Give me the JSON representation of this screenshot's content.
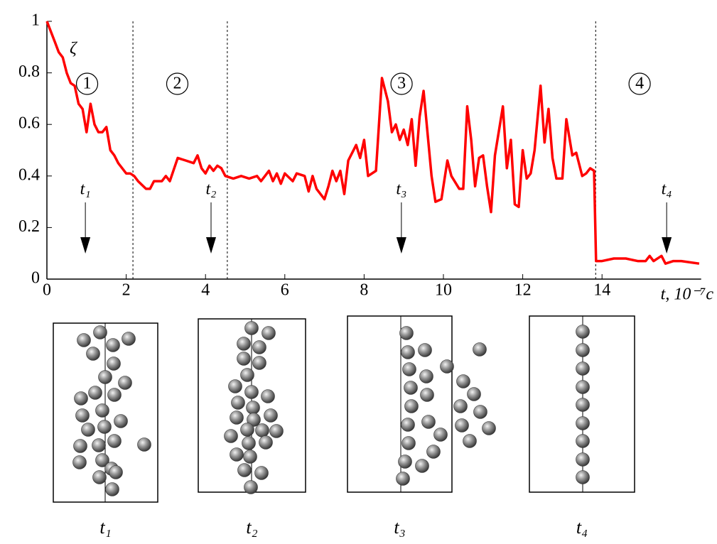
{
  "chart_data": {
    "type": "line",
    "ylabel": "ζ",
    "xlabel": "t, 10⁻⁷с",
    "x": [
      0,
      0.1,
      0.2,
      0.3,
      0.4,
      0.5,
      0.6,
      0.7,
      0.8,
      0.9,
      1.0,
      1.1,
      1.2,
      1.3,
      1.4,
      1.5,
      1.6,
      1.7,
      1.8,
      1.9,
      2.0,
      2.1,
      2.2,
      2.3,
      2.5,
      2.6,
      2.7,
      2.9,
      3.0,
      3.1,
      3.3,
      3.5,
      3.7,
      3.8,
      3.9,
      4.0,
      4.1,
      4.2,
      4.3,
      4.4,
      4.5,
      4.7,
      4.9,
      5.1,
      5.3,
      5.4,
      5.5,
      5.6,
      5.7,
      5.8,
      5.9,
      6.0,
      6.2,
      6.3,
      6.5,
      6.6,
      6.7,
      6.8,
      7.0,
      7.1,
      7.2,
      7.3,
      7.4,
      7.5,
      7.6,
      7.8,
      7.9,
      8.0,
      8.1,
      8.3,
      8.45,
      8.6,
      8.7,
      8.8,
      8.9,
      9.0,
      9.1,
      9.2,
      9.3,
      9.4,
      9.5,
      9.7,
      9.8,
      9.95,
      10.1,
      10.2,
      10.4,
      10.5,
      10.6,
      10.7,
      10.8,
      10.9,
      11.0,
      11.1,
      11.2,
      11.3,
      11.5,
      11.6,
      11.7,
      11.8,
      11.9,
      12.0,
      12.1,
      12.2,
      12.3,
      12.45,
      12.55,
      12.65,
      12.75,
      12.85,
      13.0,
      13.1,
      13.25,
      13.35,
      13.5,
      13.6,
      13.7,
      13.8,
      13.85,
      14.0,
      14.3,
      14.6,
      14.9,
      15.1,
      15.2,
      15.3,
      15.5,
      15.6,
      15.8,
      16.0,
      16.45
    ],
    "series": [
      {
        "color": "#ff0000",
        "values": [
          1.0,
          0.96,
          0.92,
          0.88,
          0.86,
          0.8,
          0.76,
          0.75,
          0.68,
          0.66,
          0.57,
          0.68,
          0.6,
          0.57,
          0.57,
          0.59,
          0.5,
          0.48,
          0.45,
          0.43,
          0.41,
          0.41,
          0.4,
          0.38,
          0.35,
          0.35,
          0.38,
          0.38,
          0.4,
          0.38,
          0.47,
          0.46,
          0.45,
          0.48,
          0.43,
          0.41,
          0.44,
          0.42,
          0.44,
          0.43,
          0.4,
          0.39,
          0.4,
          0.39,
          0.4,
          0.38,
          0.4,
          0.42,
          0.38,
          0.41,
          0.37,
          0.41,
          0.38,
          0.41,
          0.4,
          0.34,
          0.4,
          0.35,
          0.31,
          0.36,
          0.42,
          0.38,
          0.42,
          0.33,
          0.46,
          0.52,
          0.47,
          0.54,
          0.4,
          0.42,
          0.78,
          0.69,
          0.57,
          0.6,
          0.54,
          0.58,
          0.52,
          0.62,
          0.44,
          0.63,
          0.73,
          0.4,
          0.3,
          0.31,
          0.46,
          0.4,
          0.35,
          0.35,
          0.67,
          0.54,
          0.36,
          0.47,
          0.48,
          0.36,
          0.26,
          0.48,
          0.67,
          0.43,
          0.54,
          0.29,
          0.28,
          0.5,
          0.39,
          0.41,
          0.5,
          0.75,
          0.53,
          0.66,
          0.47,
          0.39,
          0.39,
          0.62,
          0.48,
          0.49,
          0.4,
          0.41,
          0.43,
          0.42,
          0.07,
          0.07,
          0.08,
          0.08,
          0.07,
          0.07,
          0.09,
          0.07,
          0.09,
          0.06,
          0.07,
          0.07,
          0.06
        ]
      }
    ],
    "xlim": [
      0,
      16.5
    ],
    "ylim": [
      0,
      1
    ],
    "xticks": [
      0,
      2,
      4,
      6,
      8,
      10,
      12,
      14
    ],
    "yticks": [
      0,
      0.2,
      0.4,
      0.6,
      0.8,
      1
    ],
    "vlines": [
      2.17,
      4.55,
      13.84
    ],
    "regions": [
      "1",
      "2",
      "3",
      "4"
    ],
    "markers": [
      {
        "label": "t₁",
        "x": 0.97
      },
      {
        "label": "t₂",
        "x": 4.14
      },
      {
        "label": "t₃",
        "x": 8.94
      },
      {
        "label": "t₄",
        "x": 15.63
      }
    ]
  },
  "panels": [
    "t₁",
    "t₂",
    "t₃",
    "t₄"
  ]
}
